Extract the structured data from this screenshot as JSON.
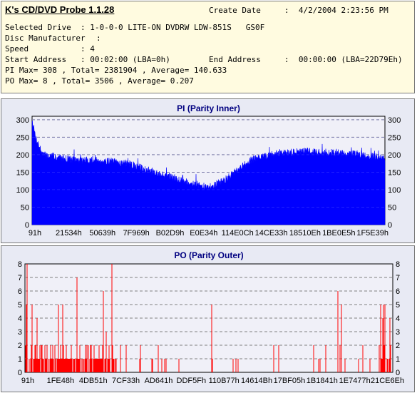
{
  "info": {
    "title": "K's CD/DVD Probe 1.1.28",
    "create_date_label": "Create Date",
    "create_date_value": ":  4/2/2004 2:23:56 PM",
    "selected_drive_label": "Selected Drive",
    "selected_drive_value": ": 1-0-0-0 LITE-ON DVDRW LDW-851S   GS0F",
    "disc_manufacturer_label": "Disc Manufacturer",
    "disc_manufacturer_value": ":",
    "speed_label": "Speed",
    "speed_value": ": 4",
    "start_address_label": "Start Address",
    "start_address_value": ": 00:02:00 (LBA=0h)",
    "end_address_label": "End Address",
    "end_address_value": ":  00:00:00 (LBA=22D79Eh)",
    "pi_summary": "PI Max= 308 , Total= 2381904 , Average= 140.633",
    "po_summary": "PO Max= 8 , Total= 3506 , Average= 0.207"
  },
  "chart_data": [
    {
      "type": "area",
      "title": "PI (Parity Inner)",
      "ylim": [
        0,
        310
      ],
      "yticks": [
        "300",
        "250",
        "200",
        "150",
        "100",
        "50",
        "0"
      ],
      "ytick_values": [
        300,
        250,
        200,
        150,
        100,
        50,
        0
      ],
      "xticks": [
        "91h",
        "21534h",
        "50639h",
        "7F969h",
        "B02D9h",
        "E0E34h",
        "114E0Ch",
        "14CE33h",
        "18510Eh",
        "1BE0E5h",
        "1F5E39h"
      ],
      "grid": true,
      "color": "#0000ff",
      "profile_x": [
        0,
        0.01,
        0.03,
        0.12,
        0.2,
        0.27,
        0.38,
        0.45,
        0.5,
        0.55,
        0.62,
        0.7,
        0.78,
        0.85,
        0.93,
        1.0
      ],
      "profile_y": [
        300,
        250,
        200,
        185,
        183,
        175,
        140,
        120,
        105,
        130,
        185,
        205,
        210,
        205,
        200,
        190
      ]
    },
    {
      "type": "bar",
      "title": "PO (Parity Outer)",
      "ylim": [
        0,
        8
      ],
      "yticks": [
        "8",
        "7",
        "6",
        "5",
        "4",
        "3",
        "2",
        "1",
        "0"
      ],
      "ytick_values": [
        8,
        7,
        6,
        5,
        4,
        3,
        2,
        1,
        0
      ],
      "xticks": [
        "91h",
        "1FE48h",
        "4DB51h",
        "7CF33h",
        "AD641h",
        "DDF5Fh",
        "110B77h",
        "14614Bh",
        "17BF05h",
        "1B1841h",
        "1E7477h",
        "21CE6Eh"
      ],
      "grid": true,
      "color": "#ff0000",
      "max": 8,
      "total": 3506,
      "average": 0.207
    }
  ]
}
